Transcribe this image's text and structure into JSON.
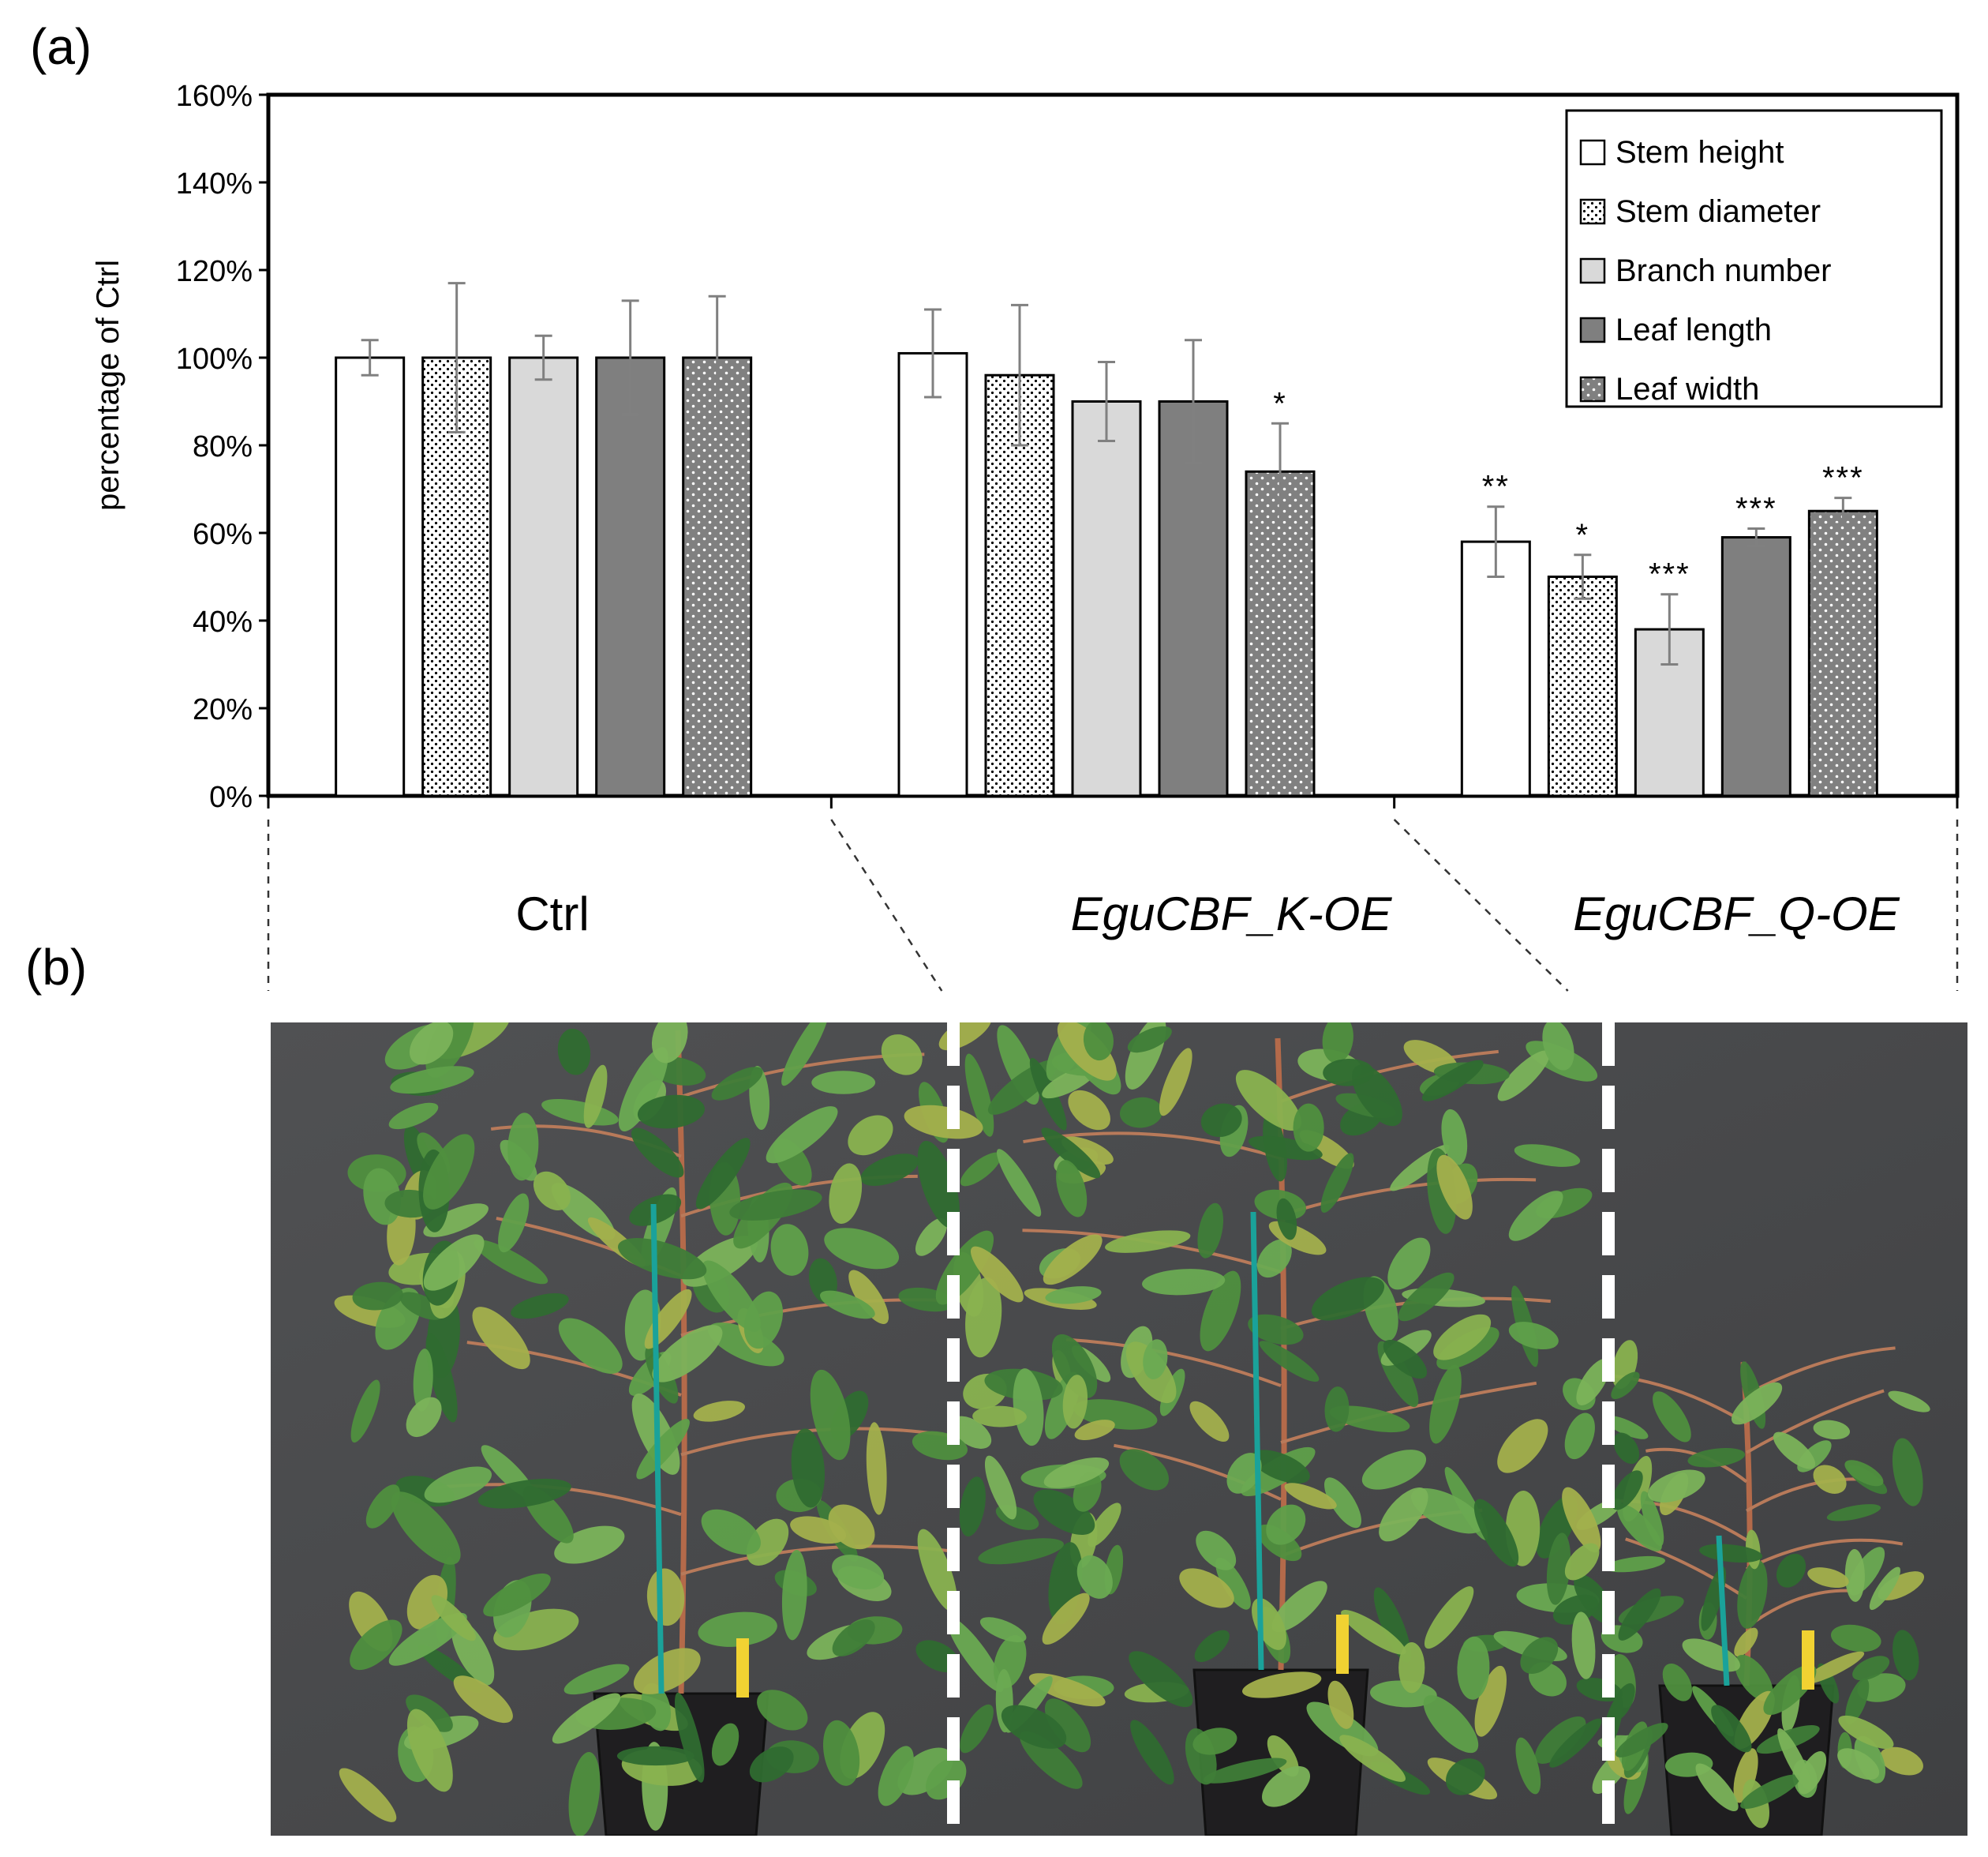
{
  "panel_labels": {
    "a": "(a)",
    "b": "(b)"
  },
  "chart_data": {
    "type": "bar",
    "title": "",
    "xlabel": "",
    "ylabel": "percentage of Ctrl",
    "ylim": [
      0,
      1.6
    ],
    "yticks": [
      0,
      0.2,
      0.4,
      0.6,
      0.8,
      1.0,
      1.2,
      1.4,
      1.6
    ],
    "ytick_labels": [
      "0%",
      "20%",
      "40%",
      "60%",
      "80%",
      "100%",
      "120%",
      "140%",
      "160%"
    ],
    "grid": false,
    "legend_position": "top-right",
    "categories": [
      "Ctrl",
      "EguCBF_K-OE",
      "EguCBF_Q-OE"
    ],
    "category_italic": [
      false,
      true,
      true
    ],
    "series": [
      {
        "name": "Stem height",
        "pattern": "white",
        "values": [
          1.0,
          1.01,
          0.58
        ],
        "errors": [
          0.04,
          0.1,
          0.08
        ],
        "significance": [
          "",
          "",
          "**"
        ]
      },
      {
        "name": "Stem diameter",
        "pattern": "dense-dots",
        "values": [
          1.0,
          0.96,
          0.5
        ],
        "errors": [
          0.17,
          0.16,
          0.05
        ],
        "significance": [
          "",
          "",
          "*"
        ]
      },
      {
        "name": "Branch number",
        "pattern": "light-gray",
        "values": [
          1.0,
          0.9,
          0.38
        ],
        "errors": [
          0.05,
          0.09,
          0.08
        ],
        "significance": [
          "",
          "",
          "***"
        ]
      },
      {
        "name": "Leaf length",
        "pattern": "dark-gray",
        "values": [
          1.0,
          0.9,
          0.59
        ],
        "errors": [
          0.13,
          0.14,
          0.02
        ],
        "significance": [
          "",
          "",
          "***"
        ]
      },
      {
        "name": "Leaf width",
        "pattern": "gray-white-dots",
        "values": [
          1.0,
          0.74,
          0.65
        ],
        "errors": [
          0.14,
          0.11,
          0.03
        ],
        "significance": [
          "",
          "*",
          "***"
        ]
      }
    ],
    "colors": {
      "white": "#ffffff",
      "light_gray": "#d9d9d9",
      "dark_gray": "#7f7f7f",
      "dot_bg_gray": "#808080",
      "axis": "#000000",
      "error_bar": "#808080"
    }
  },
  "photo": {
    "panels": [
      "Ctrl",
      "EguCBF_K-OE",
      "EguCBF_Q-OE"
    ],
    "background": "#4a4b4d",
    "divider_color": "#ffffff"
  }
}
